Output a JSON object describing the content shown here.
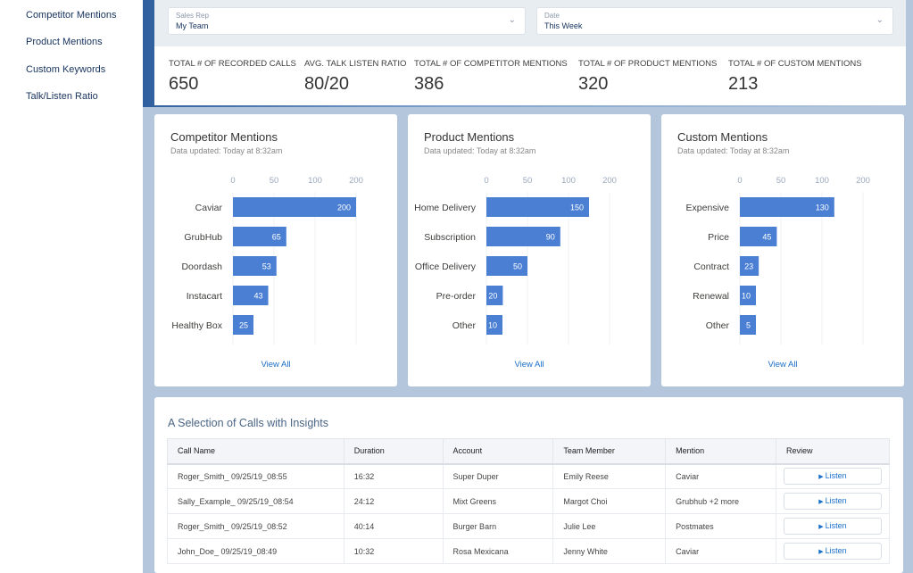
{
  "sidebar": {
    "items": [
      {
        "label": "Competitor Mentions"
      },
      {
        "label": "Product Mentions"
      },
      {
        "label": "Custom Keywords"
      },
      {
        "label": "Talk/Listen Ratio"
      }
    ]
  },
  "filters": {
    "sales_rep": {
      "label": "Sales Rep",
      "value": "My Team"
    },
    "date": {
      "label": "Date",
      "value": "This Week"
    }
  },
  "stats": [
    {
      "label": "TOTAL # OF RECORDED CALLS",
      "value": "650"
    },
    {
      "label": "AVG. TALK LISTEN RATIO",
      "value": "80/20"
    },
    {
      "label": "TOTAL # OF COMPETITOR MENTIONS",
      "value": "386"
    },
    {
      "label": "TOTAL # OF PRODUCT MENTIONS",
      "value": "320"
    },
    {
      "label": "TOTAL # OF CUSTOM MENTIONS",
      "value": "213"
    }
  ],
  "colors": {
    "bar": "#4a7fd4",
    "link": "#1a6fc9"
  },
  "chart_data": [
    {
      "type": "bar",
      "orientation": "horizontal",
      "title": "Competitor Mentions",
      "subtitle": "Data updated: Today at 8:32am",
      "ticks": [
        0,
        50,
        100,
        200
      ],
      "categories": [
        "Caviar",
        "GrubHub",
        "Doordash",
        "Instacart",
        "Healthy Box"
      ],
      "values": [
        200,
        65,
        53,
        43,
        25
      ],
      "link": "View All"
    },
    {
      "type": "bar",
      "orientation": "horizontal",
      "title": "Product Mentions",
      "subtitle": "Data updated: Today at 8:32am",
      "ticks": [
        0,
        50,
        100,
        200
      ],
      "categories": [
        "Home Delivery",
        "Subscription",
        "Office Delivery",
        "Pre-order",
        "Other"
      ],
      "values": [
        150,
        90,
        50,
        20,
        10
      ],
      "link": "View All"
    },
    {
      "type": "bar",
      "orientation": "horizontal",
      "title": "Custom Mentions",
      "subtitle": "Data updated: Today at 8:32am",
      "ticks": [
        0,
        50,
        100,
        200
      ],
      "categories": [
        "Expensive",
        "Price",
        "Contract",
        "Renewal",
        "Other"
      ],
      "values": [
        130,
        45,
        23,
        10,
        5
      ],
      "link": "View All"
    }
  ],
  "calls": {
    "title": "A Selection of Calls with Insights",
    "columns": [
      "Call Name",
      "Duration",
      "Account",
      "Team Member",
      "Mention",
      "Review"
    ],
    "rows": [
      [
        "Roger_Smith_ 09/25/19_08:55",
        "16:32",
        "Super Duper",
        "Emily Reese",
        "Caviar",
        "Listen"
      ],
      [
        "Sally_Example_ 09/25/19_08:54",
        "24:12",
        "Mixt Greens",
        "Margot Choi",
        "Grubhub +2 more",
        "Listen"
      ],
      [
        "Roger_Smith_ 09/25/19_08:52",
        "40:14",
        "Burger Barn",
        "Julie Lee",
        "Postmates",
        "Listen"
      ],
      [
        "John_Doe_ 09/25/19_08:49",
        "10:32",
        "Rosa Mexicana",
        "Jenny White",
        "Caviar",
        "Listen"
      ]
    ]
  }
}
